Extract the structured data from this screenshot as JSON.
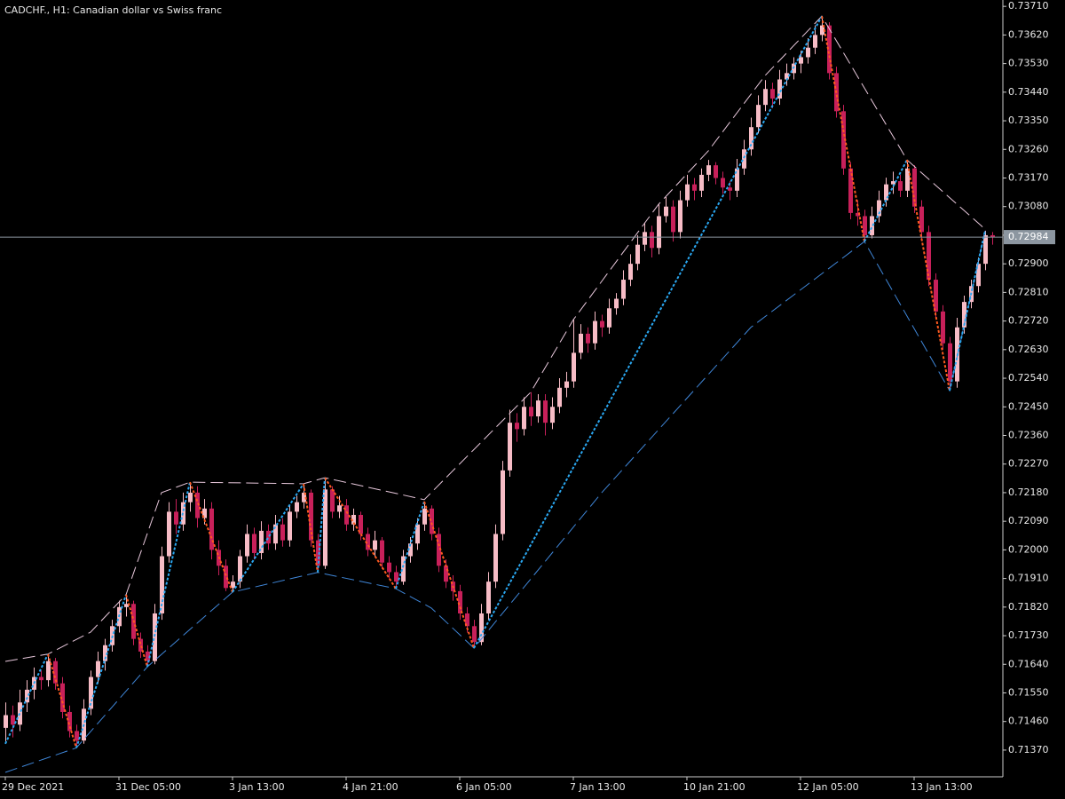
{
  "chart_data": {
    "type": "candlestick",
    "title": "CADCHF., H1:  Canadian dollar vs Swiss franc",
    "up_color": "#f7bcc6",
    "down_color": "#c8205a",
    "ylim": [
      0.71286,
      0.7373
    ],
    "yticks": [
      {
        "value": 0.7371,
        "label": "0.73710"
      },
      {
        "value": 0.7362,
        "label": "0.73620"
      },
      {
        "value": 0.7353,
        "label": "0.73530"
      },
      {
        "value": 0.7344,
        "label": "0.73440"
      },
      {
        "value": 0.7335,
        "label": "0.73350"
      },
      {
        "value": 0.7326,
        "label": "0.73260"
      },
      {
        "value": 0.7317,
        "label": "0.73170"
      },
      {
        "value": 0.7308,
        "label": "0.73080"
      },
      {
        "value": 0.7299,
        "label": "0.72990"
      },
      {
        "value": 0.729,
        "label": "0.72900"
      },
      {
        "value": 0.7281,
        "label": "0.72810"
      },
      {
        "value": 0.7272,
        "label": "0.72720"
      },
      {
        "value": 0.7263,
        "label": "0.72630"
      },
      {
        "value": 0.7254,
        "label": "0.72540"
      },
      {
        "value": 0.7245,
        "label": "0.72450"
      },
      {
        "value": 0.7236,
        "label": "0.72360"
      },
      {
        "value": 0.7227,
        "label": "0.72270"
      },
      {
        "value": 0.7218,
        "label": "0.72180"
      },
      {
        "value": 0.7209,
        "label": "0.72090"
      },
      {
        "value": 0.72,
        "label": "0.72000"
      },
      {
        "value": 0.7191,
        "label": "0.71910"
      },
      {
        "value": 0.7182,
        "label": "0.71820"
      },
      {
        "value": 0.7173,
        "label": "0.71730"
      },
      {
        "value": 0.7164,
        "label": "0.71640"
      },
      {
        "value": 0.7155,
        "label": "0.71550"
      },
      {
        "value": 0.7146,
        "label": "0.71460"
      },
      {
        "value": 0.7137,
        "label": "0.71370"
      }
    ],
    "xlim": [
      0,
      140
    ],
    "xticks": [
      {
        "value": 0,
        "label": "29 Dec 2021"
      },
      {
        "value": 16,
        "label": "31 Dec 05:00"
      },
      {
        "value": 32,
        "label": "3 Jan 13:00"
      },
      {
        "value": 48,
        "label": "4 Jan 21:00"
      },
      {
        "value": 64,
        "label": "6 Jan 05:00"
      },
      {
        "value": 80,
        "label": "7 Jan 13:00"
      },
      {
        "value": 96,
        "label": "10 Jan 21:00"
      },
      {
        "value": 112,
        "label": "12 Jan 05:00"
      },
      {
        "value": 128,
        "label": "13 Jan 13:00"
      }
    ],
    "bid_price": 0.72984,
    "ohlc": [
      [
        0.7144,
        0.7152,
        0.7139,
        0.7148
      ],
      [
        0.7148,
        0.7151,
        0.7141,
        0.7145
      ],
      [
        0.7145,
        0.7156,
        0.7143,
        0.7152
      ],
      [
        0.7152,
        0.7159,
        0.7149,
        0.7156
      ],
      [
        0.7156,
        0.7163,
        0.7153,
        0.716
      ],
      [
        0.716,
        0.7162,
        0.7156,
        0.7159
      ],
      [
        0.7159,
        0.71672,
        0.7157,
        0.7165
      ],
      [
        0.7165,
        0.7166,
        0.7156,
        0.7158
      ],
      [
        0.7158,
        0.716,
        0.7147,
        0.7149
      ],
      [
        0.7149,
        0.7151,
        0.7141,
        0.7143
      ],
      [
        0.7143,
        0.7145,
        0.71377,
        0.714
      ],
      [
        0.714,
        0.7153,
        0.7139,
        0.715
      ],
      [
        0.715,
        0.7162,
        0.7148,
        0.716
      ],
      [
        0.716,
        0.7168,
        0.7158,
        0.7165
      ],
      [
        0.7165,
        0.7172,
        0.7162,
        0.717
      ],
      [
        0.717,
        0.7178,
        0.7168,
        0.7176
      ],
      [
        0.7176,
        0.7184,
        0.7174,
        0.7182
      ],
      [
        0.7182,
        0.71859,
        0.7179,
        0.7183
      ],
      [
        0.7183,
        0.7184,
        0.717,
        0.7172
      ],
      [
        0.7172,
        0.7174,
        0.7166,
        0.7168
      ],
      [
        0.7168,
        0.717,
        0.71632,
        0.7165
      ],
      [
        0.7165,
        0.7183,
        0.7164,
        0.718
      ],
      [
        0.718,
        0.7201,
        0.7178,
        0.7198
      ],
      [
        0.7198,
        0.7215,
        0.7196,
        0.7212
      ],
      [
        0.7212,
        0.7216,
        0.7205,
        0.7208
      ],
      [
        0.7208,
        0.7218,
        0.7206,
        0.7215
      ],
      [
        0.7215,
        0.72213,
        0.7212,
        0.7218
      ],
      [
        0.7218,
        0.722,
        0.7207,
        0.721
      ],
      [
        0.721,
        0.7216,
        0.7208,
        0.7213
      ],
      [
        0.7213,
        0.7215,
        0.7197,
        0.72
      ],
      [
        0.72,
        0.7203,
        0.7192,
        0.7195
      ],
      [
        0.7195,
        0.7197,
        0.7187,
        0.7188
      ],
      [
        0.7188,
        0.7192,
        0.71867,
        0.719
      ],
      [
        0.719,
        0.72,
        0.7188,
        0.7198
      ],
      [
        0.7198,
        0.7208,
        0.7196,
        0.7205
      ],
      [
        0.7205,
        0.7207,
        0.7197,
        0.7199
      ],
      [
        0.7199,
        0.7209,
        0.7197,
        0.7206
      ],
      [
        0.7206,
        0.7208,
        0.72,
        0.7202
      ],
      [
        0.7202,
        0.7211,
        0.72,
        0.7208
      ],
      [
        0.7208,
        0.721,
        0.7201,
        0.7203
      ],
      [
        0.7203,
        0.7214,
        0.7201,
        0.7212
      ],
      [
        0.7212,
        0.7217,
        0.721,
        0.7215
      ],
      [
        0.7215,
        0.72208,
        0.7213,
        0.7218
      ],
      [
        0.7218,
        0.7219,
        0.7201,
        0.7203
      ],
      [
        0.7203,
        0.7205,
        0.71929,
        0.7195
      ],
      [
        0.7195,
        0.72227,
        0.7194,
        0.7219
      ],
      [
        0.7219,
        0.722,
        0.721,
        0.7212
      ],
      [
        0.7212,
        0.7217,
        0.721,
        0.7214
      ],
      [
        0.7214,
        0.7216,
        0.7206,
        0.7208
      ],
      [
        0.7208,
        0.7213,
        0.7206,
        0.7211
      ],
      [
        0.7211,
        0.7212,
        0.7203,
        0.7205
      ],
      [
        0.7205,
        0.7207,
        0.7198,
        0.72
      ],
      [
        0.72,
        0.7206,
        0.7198,
        0.7203
      ],
      [
        0.7203,
        0.7204,
        0.7194,
        0.7196
      ],
      [
        0.7196,
        0.7198,
        0.7191,
        0.7193
      ],
      [
        0.7193,
        0.7195,
        0.71878,
        0.719
      ],
      [
        0.719,
        0.72,
        0.7189,
        0.7198
      ],
      [
        0.7198,
        0.7204,
        0.7196,
        0.7202
      ],
      [
        0.7202,
        0.721,
        0.72,
        0.7208
      ],
      [
        0.7208,
        0.72152,
        0.7206,
        0.7213
      ],
      [
        0.7213,
        0.7214,
        0.7203,
        0.7205
      ],
      [
        0.7205,
        0.7207,
        0.7193,
        0.7195
      ],
      [
        0.7195,
        0.7197,
        0.7188,
        0.719
      ],
      [
        0.719,
        0.7192,
        0.7184,
        0.7187
      ],
      [
        0.7187,
        0.7189,
        0.7178,
        0.718
      ],
      [
        0.718,
        0.7182,
        0.7174,
        0.7176
      ],
      [
        0.7176,
        0.7178,
        0.71691,
        0.7171
      ],
      [
        0.7171,
        0.7183,
        0.717,
        0.718
      ],
      [
        0.718,
        0.7193,
        0.7178,
        0.719
      ],
      [
        0.719,
        0.7208,
        0.7188,
        0.7205
      ],
      [
        0.7205,
        0.7228,
        0.7203,
        0.7225
      ],
      [
        0.7225,
        0.72441,
        0.7223,
        0.724
      ],
      [
        0.724,
        0.7243,
        0.7234,
        0.7238
      ],
      [
        0.7238,
        0.7248,
        0.7236,
        0.7245
      ],
      [
        0.7245,
        0.72496,
        0.7239,
        0.7242
      ],
      [
        0.7242,
        0.7249,
        0.724,
        0.7247
      ],
      [
        0.7247,
        0.7249,
        0.7236,
        0.724
      ],
      [
        0.724,
        0.7248,
        0.7238,
        0.7245
      ],
      [
        0.7245,
        0.7254,
        0.7243,
        0.7251
      ],
      [
        0.7251,
        0.7256,
        0.7248,
        0.7253
      ],
      [
        0.7253,
        0.72724,
        0.7251,
        0.7262
      ],
      [
        0.7262,
        0.7271,
        0.726,
        0.7268
      ],
      [
        0.7268,
        0.727,
        0.7262,
        0.7265
      ],
      [
        0.7265,
        0.7275,
        0.7263,
        0.7272
      ],
      [
        0.7272,
        0.7274,
        0.7267,
        0.727
      ],
      [
        0.727,
        0.7279,
        0.7268,
        0.7276
      ],
      [
        0.7276,
        0.72808,
        0.7274,
        0.7279
      ],
      [
        0.7279,
        0.7288,
        0.7277,
        0.7285
      ],
      [
        0.7285,
        0.7293,
        0.7283,
        0.729
      ],
      [
        0.729,
        0.7299,
        0.7288,
        0.7296
      ],
      [
        0.7296,
        0.7303,
        0.7294,
        0.73
      ],
      [
        0.73,
        0.7302,
        0.7292,
        0.7295
      ],
      [
        0.7295,
        0.73087,
        0.7293,
        0.7305
      ],
      [
        0.7305,
        0.7311,
        0.7303,
        0.7308
      ],
      [
        0.7308,
        0.731,
        0.7297,
        0.73
      ],
      [
        0.73,
        0.7313,
        0.7298,
        0.731
      ],
      [
        0.731,
        0.7318,
        0.7308,
        0.7315
      ],
      [
        0.7315,
        0.7317,
        0.731,
        0.7313
      ],
      [
        0.7313,
        0.732,
        0.7311,
        0.7318
      ],
      [
        0.7318,
        0.73227,
        0.7316,
        0.7321
      ],
      [
        0.7321,
        0.7322,
        0.7315,
        0.7317
      ],
      [
        0.7317,
        0.7319,
        0.7312,
        0.7314
      ],
      [
        0.7314,
        0.7316,
        0.731,
        0.7313
      ],
      [
        0.7313,
        0.7323,
        0.7311,
        0.732
      ],
      [
        0.732,
        0.7329,
        0.7318,
        0.7326
      ],
      [
        0.7326,
        0.7336,
        0.7324,
        0.7333
      ],
      [
        0.7333,
        0.7343,
        0.7331,
        0.734
      ],
      [
        0.734,
        0.73478,
        0.7338,
        0.7345
      ],
      [
        0.7345,
        0.7347,
        0.7339,
        0.7342
      ],
      [
        0.7342,
        0.7351,
        0.734,
        0.7348
      ],
      [
        0.7348,
        0.7353,
        0.7346,
        0.735
      ],
      [
        0.735,
        0.7355,
        0.7348,
        0.7353
      ],
      [
        0.7353,
        0.7357,
        0.735,
        0.7355
      ],
      [
        0.7355,
        0.7361,
        0.7353,
        0.7358
      ],
      [
        0.7358,
        0.7365,
        0.7356,
        0.7362
      ],
      [
        0.7362,
        0.73679,
        0.736,
        0.7365
      ],
      [
        0.7365,
        0.7366,
        0.7348,
        0.735
      ],
      [
        0.735,
        0.7352,
        0.7336,
        0.7338
      ],
      [
        0.7338,
        0.734,
        0.7318,
        0.732
      ],
      [
        0.732,
        0.7322,
        0.7304,
        0.7306
      ],
      [
        0.7306,
        0.731,
        0.7302,
        0.7305
      ],
      [
        0.7305,
        0.7307,
        0.7297,
        0.7299
      ],
      [
        0.7299,
        0.7308,
        0.7298,
        0.7305
      ],
      [
        0.7305,
        0.7313,
        0.7303,
        0.731
      ],
      [
        0.731,
        0.73171,
        0.7308,
        0.7315
      ],
      [
        0.7315,
        0.7319,
        0.7312,
        0.7316
      ],
      [
        0.7316,
        0.7318,
        0.7311,
        0.7313
      ],
      [
        0.7313,
        0.73227,
        0.7311,
        0.732
      ],
      [
        0.732,
        0.7321,
        0.7306,
        0.7308
      ],
      [
        0.7308,
        0.731,
        0.7298,
        0.73
      ],
      [
        0.73,
        0.7302,
        0.7283,
        0.7285
      ],
      [
        0.7285,
        0.7287,
        0.7273,
        0.7275
      ],
      [
        0.7275,
        0.7277,
        0.7263,
        0.7265
      ],
      [
        0.7265,
        0.7267,
        0.72501,
        0.7253
      ],
      [
        0.7253,
        0.7273,
        0.7251,
        0.727
      ],
      [
        0.727,
        0.728,
        0.7268,
        0.7278
      ],
      [
        0.7278,
        0.7285,
        0.7276,
        0.7283
      ],
      [
        0.7283,
        0.7292,
        0.7281,
        0.729
      ],
      [
        0.729,
        0.73004,
        0.7288,
        0.7299
      ],
      [
        0.7299,
        0.73,
        0.7296,
        0.72984
      ]
    ],
    "zigzag": {
      "up_color": "#2aa8f2",
      "down_color": "#ff5a1f",
      "x": [
        0,
        6,
        10,
        17,
        20,
        26,
        32,
        42,
        44,
        45,
        55,
        59,
        66,
        115,
        121,
        127,
        133,
        138
      ],
      "values": [
        0.7139,
        0.71672,
        0.71377,
        0.71859,
        0.71632,
        0.72213,
        0.71867,
        0.72208,
        0.71929,
        0.72227,
        0.71878,
        0.72152,
        0.71691,
        0.73679,
        0.7297,
        0.73227,
        0.72501,
        0.73004
      ]
    },
    "upper_band": {
      "color": "#e8c8dc",
      "x": [
        0,
        6,
        12,
        17,
        22,
        26,
        42,
        45,
        59,
        74,
        80,
        92,
        99,
        107,
        115,
        127,
        138
      ],
      "values": [
        0.71649,
        0.71672,
        0.71741,
        0.71859,
        0.7218,
        0.72213,
        0.72208,
        0.72227,
        0.72158,
        0.72496,
        0.72724,
        0.73087,
        0.73255,
        0.73492,
        0.73679,
        0.73227,
        0.73009
      ]
    },
    "lower_band": {
      "color": "#3f86d8",
      "x": [
        0,
        10,
        20,
        32,
        44,
        55,
        60,
        66,
        84,
        105,
        121,
        133,
        138
      ],
      "values": [
        0.713,
        0.71377,
        0.71632,
        0.71867,
        0.71929,
        0.71878,
        0.71817,
        0.71691,
        0.7218,
        0.727,
        0.7297,
        0.72501,
        0.73004
      ]
    }
  }
}
